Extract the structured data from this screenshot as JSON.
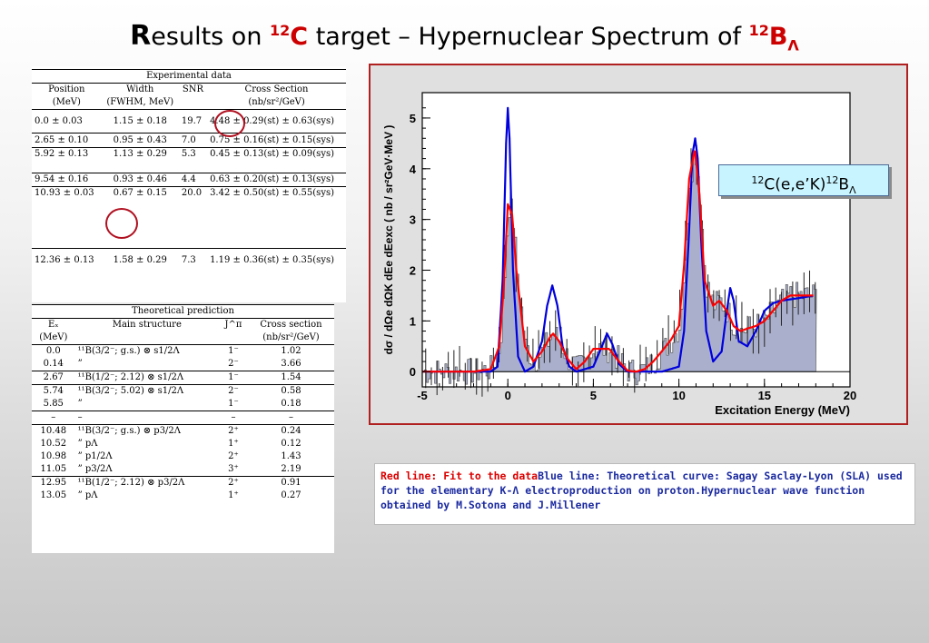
{
  "title": {
    "lead": "R",
    "rest": "esults on ",
    "mass1": "12",
    "elem1": "C",
    "middle": " target – Hypernuclear Spectrum of ",
    "mass2": "12",
    "elem2": "B",
    "sub": "Λ"
  },
  "experimental": {
    "title": "Experimental data",
    "headers": [
      [
        "Position",
        "(MeV)"
      ],
      [
        "Width",
        "(FWHM, MeV)"
      ],
      [
        "SNR",
        ""
      ],
      [
        "Cross Section",
        "(nb/sr²/GeV)"
      ]
    ],
    "rows": [
      [
        "0.0 ± 0.03",
        "1.15 ± 0.18",
        "19.7",
        "4.48 ± 0.29(st) ± 0.63(sys)"
      ],
      [
        "2.65 ± 0.10",
        "0.95 ± 0.43",
        "7.0",
        "0.75 ± 0.16(st) ± 0.15(sys)"
      ],
      [
        "5.92 ± 0.13",
        "1.13 ± 0.29",
        "5.3",
        "0.45 ± 0.13(st) ± 0.09(sys)"
      ],
      [
        "9.54 ± 0.16",
        "0.93 ± 0.46",
        "4.4",
        "0.63 ± 0.20(st) ± 0.13(sys)"
      ],
      [
        "10.93 ± 0.03",
        "0.67 ± 0.15",
        "20.0",
        "3.42 ± 0.50(st) ± 0.55(sys)"
      ],
      [
        "12.36 ± 0.13",
        "1.58 ± 0.29",
        "7.3",
        "1.19 ± 0.36(st) ± 0.35(sys)"
      ]
    ]
  },
  "theoretical": {
    "title": "Theoretical prediction",
    "headers": [
      [
        "Eₓ",
        "(MeV)"
      ],
      [
        "Main structure",
        ""
      ],
      [
        "J^π",
        ""
      ],
      [
        "Cross section",
        "(nb/sr²/GeV)"
      ]
    ],
    "rows": [
      [
        "0.0",
        "¹¹B(3/2⁻; g.s.) ⊗ s1/2Λ",
        "1⁻",
        "1.02"
      ],
      [
        "0.14",
        "”",
        "2⁻",
        "3.66"
      ],
      [
        "2.67",
        "¹¹B(1/2⁻; 2.12) ⊗ s1/2Λ",
        "1⁻",
        "1.54"
      ],
      [
        "5.74",
        "¹¹B(3/2⁻; 5.02) ⊗ s1/2Λ",
        "2⁻",
        "0.58"
      ],
      [
        "5.85",
        "”",
        "1⁻",
        "0.18"
      ],
      [
        "–",
        "–",
        "–",
        "–"
      ],
      [
        "10.48",
        "¹¹B(3/2⁻; g.s.) ⊗ p3/2Λ",
        "2⁺",
        "0.24"
      ],
      [
        "10.52",
        "”   pΛ",
        "1⁺",
        "0.12"
      ],
      [
        "10.98",
        "”   p1/2Λ",
        "2⁺",
        "1.43"
      ],
      [
        "11.05",
        "”   p3/2Λ",
        "3⁺",
        "2.19"
      ],
      [
        "12.95",
        "¹¹B(1/2⁻; 2.12) ⊗ p3/2Λ",
        "2⁺",
        "0.91"
      ],
      [
        "13.05",
        "”   pΛ",
        "1⁺",
        "0.27"
      ]
    ]
  },
  "reaction_label": {
    "m1": "12",
    "a": "C(e,e’K)",
    "m2": "12",
    "b": "B",
    "sub": "Λ"
  },
  "caption": {
    "red": "Red line: Fit to the data",
    "blue": "Blue line: Theoretical curve: Sagay Saclay-Lyon (SLA) used for the elementary K-Λ electroproduction on proton.Hypernuclear wave function obtained by M.Sotona and J.Millener"
  },
  "chart_data": {
    "type": "line",
    "xlabel": "Excitation Energy (MeV)",
    "ylabel": "dσ / dΩe dΩK dEe dEexc ( nb / sr²GeV·MeV )",
    "xlim": [
      -5,
      20
    ],
    "ylim": [
      -0.3,
      5.5
    ],
    "xticks": [
      -5,
      0,
      5,
      10,
      15,
      20
    ],
    "yticks": [
      0,
      1,
      2,
      3,
      4,
      5
    ],
    "colors": {
      "data": "#333333",
      "fit": "#ff0000",
      "theory": "#0000dd",
      "fill": "#aab0cc"
    },
    "series": [
      {
        "name": "Fit to the data",
        "x": [
          -5,
          -4,
          -3,
          -2,
          -1,
          -0.5,
          -0.25,
          0,
          0.25,
          0.5,
          1,
          1.5,
          2,
          2.5,
          2.65,
          3,
          3.5,
          4,
          4.5,
          5,
          5.5,
          5.92,
          6.5,
          7,
          7.5,
          8,
          8.5,
          9,
          9.54,
          10,
          10.3,
          10.6,
          10.93,
          11.2,
          11.5,
          12,
          12.36,
          12.8,
          13.2,
          13.6,
          14,
          14.5,
          15,
          15.5,
          16,
          16.5,
          17,
          17.5,
          17.9
        ],
        "y": [
          0,
          0,
          0,
          0,
          0.05,
          0.5,
          1.6,
          3.3,
          3.1,
          2.0,
          0.5,
          0.2,
          0.4,
          0.7,
          0.75,
          0.6,
          0.25,
          0.05,
          0.2,
          0.45,
          0.45,
          0.45,
          0.2,
          0.02,
          0.0,
          0.05,
          0.2,
          0.4,
          0.63,
          0.9,
          2.1,
          3.8,
          4.4,
          3.5,
          1.8,
          1.3,
          1.4,
          1.2,
          0.9,
          0.8,
          0.85,
          0.9,
          1.0,
          1.2,
          1.4,
          1.5,
          1.5,
          1.5,
          1.5
        ]
      },
      {
        "name": "Theoretical curve",
        "x": [
          -5,
          -1,
          -0.6,
          -0.3,
          -0.1,
          0,
          0.1,
          0.3,
          0.6,
          1,
          1.5,
          2,
          2.3,
          2.6,
          2.9,
          3.2,
          3.6,
          4,
          5,
          5.5,
          5.8,
          6.1,
          6.5,
          7,
          9,
          10,
          10.3,
          10.6,
          10.8,
          10.95,
          11.1,
          11.3,
          11.6,
          12,
          12.5,
          12.8,
          13.0,
          13.2,
          13.5,
          14,
          14.5,
          15,
          15.5,
          16,
          17,
          17.9
        ],
        "y": [
          0,
          0,
          0.1,
          1.8,
          4.5,
          5.2,
          4.6,
          2.0,
          0.3,
          0,
          0.1,
          0.6,
          1.3,
          1.7,
          1.3,
          0.5,
          0.1,
          0,
          0.1,
          0.5,
          0.75,
          0.55,
          0.15,
          0,
          0,
          0.1,
          0.8,
          2.8,
          4.3,
          4.6,
          4.2,
          2.6,
          0.8,
          0.2,
          0.4,
          1.2,
          1.65,
          1.4,
          0.6,
          0.5,
          0.8,
          1.2,
          1.35,
          1.4,
          1.45,
          1.5
        ]
      }
    ]
  }
}
